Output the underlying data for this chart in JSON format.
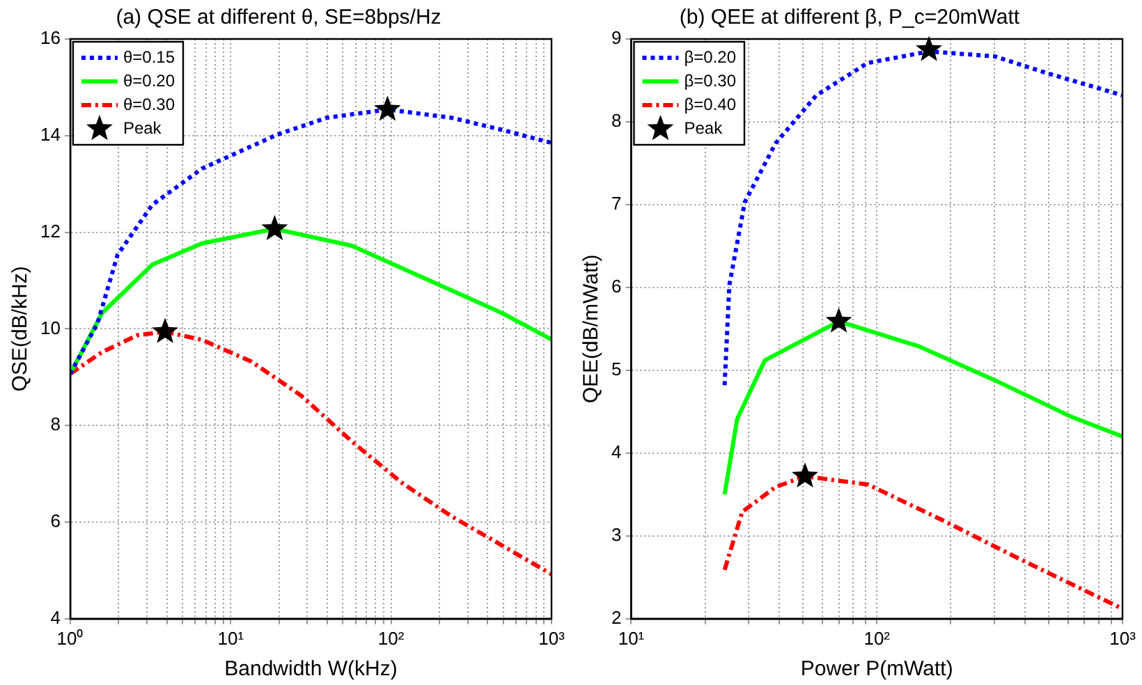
{
  "chart_data": [
    {
      "type": "line",
      "title": "(a) QSE at different θ, SE=8bps/Hz",
      "xlabel": "Bandwidth W(kHz)",
      "ylabel": "QSE(dB/kHz)",
      "log": "x",
      "grid": true,
      "legend": "top left",
      "xlim": [
        1,
        1000
      ],
      "xticks": [
        {
          "value": 1,
          "label": "10⁰"
        },
        {
          "value": 2,
          "label": null
        },
        {
          "value": 3,
          "label": null
        },
        {
          "value": 4,
          "label": null
        },
        {
          "value": 5,
          "label": null
        },
        {
          "value": 6,
          "label": null
        },
        {
          "value": 7,
          "label": null
        },
        {
          "value": 8,
          "label": null
        },
        {
          "value": 9,
          "label": null
        },
        {
          "value": 10,
          "label": "10¹"
        },
        {
          "value": 20,
          "label": null
        },
        {
          "value": 30,
          "label": null
        },
        {
          "value": 40,
          "label": null
        },
        {
          "value": 50,
          "label": null
        },
        {
          "value": 60,
          "label": null
        },
        {
          "value": 70,
          "label": null
        },
        {
          "value": 80,
          "label": null
        },
        {
          "value": 90,
          "label": null
        },
        {
          "value": 100,
          "label": "10²"
        },
        {
          "value": 200,
          "label": null
        },
        {
          "value": 300,
          "label": null
        },
        {
          "value": 400,
          "label": null
        },
        {
          "value": 500,
          "label": null
        },
        {
          "value": 600,
          "label": null
        },
        {
          "value": 700,
          "label": null
        },
        {
          "value": 800,
          "label": null
        },
        {
          "value": 900,
          "label": null
        },
        {
          "value": 1000,
          "label": "10³"
        }
      ],
      "ylim": [
        4,
        16
      ],
      "yticks": [
        4,
        6,
        8,
        10,
        12,
        14,
        16
      ],
      "series": [
        {
          "name": "θ=0.15",
          "color": "#0000ff",
          "line_style": "dotted",
          "marker": "none",
          "x": [
            1,
            1.48,
            1.97,
            3.25,
            6.65,
            19.5,
            39.8,
            95,
            238,
            490,
            1000
          ],
          "values": [
            9.07,
            10.12,
            11.53,
            12.57,
            13.32,
            14.02,
            14.37,
            14.54,
            14.37,
            14.12,
            13.85
          ]
        },
        {
          "name": "θ=0.20",
          "color": "#00ff00",
          "line_style": "solid",
          "marker": "none",
          "x": [
            1,
            1.58,
            3.25,
            6.65,
            18.8,
            56.9,
            166,
            490,
            1000
          ],
          "values": [
            9.07,
            10.33,
            11.33,
            11.77,
            12.07,
            11.72,
            11.03,
            10.33,
            9.78
          ]
        },
        {
          "name": "θ=0.30",
          "color": "#ff0000",
          "line_style": "dashed",
          "marker": "none",
          "x": [
            1,
            1.58,
            2.63,
            3.9,
            6.65,
            13.5,
            27.5,
            56.9,
            116,
            238,
            490,
            1000
          ],
          "values": [
            9.07,
            9.52,
            9.87,
            9.94,
            9.77,
            9.32,
            8.62,
            7.67,
            6.82,
            6.12,
            5.52,
            4.92
          ]
        },
        {
          "name": "Peak",
          "type": "scatter",
          "color": "#000000",
          "marker": "star",
          "x": [
            95,
            18.8,
            3.9
          ],
          "values": [
            14.54,
            12.07,
            9.94
          ]
        }
      ]
    },
    {
      "type": "line",
      "title": "(b) QEE at different β, P_c=20mWatt",
      "xlabel": "Power P(mWatt)",
      "ylabel": "QEE(dB/mWatt)",
      "log": "x",
      "grid": true,
      "legend": "top left",
      "xlim": [
        10,
        1000
      ],
      "xticks": [
        {
          "value": 10,
          "label": "10¹"
        },
        {
          "value": 20,
          "label": null
        },
        {
          "value": 30,
          "label": null
        },
        {
          "value": 40,
          "label": null
        },
        {
          "value": 50,
          "label": null
        },
        {
          "value": 60,
          "label": null
        },
        {
          "value": 70,
          "label": null
        },
        {
          "value": 80,
          "label": null
        },
        {
          "value": 90,
          "label": null
        },
        {
          "value": 100,
          "label": "10²"
        },
        {
          "value": 200,
          "label": null
        },
        {
          "value": 300,
          "label": null
        },
        {
          "value": 400,
          "label": null
        },
        {
          "value": 500,
          "label": null
        },
        {
          "value": 600,
          "label": null
        },
        {
          "value": 700,
          "label": null
        },
        {
          "value": 800,
          "label": null
        },
        {
          "value": 900,
          "label": null
        },
        {
          "value": 1000,
          "label": "10³"
        }
      ],
      "ylim": [
        2,
        9
      ],
      "yticks": [
        2,
        3,
        4,
        5,
        6,
        7,
        8,
        9
      ],
      "series": [
        {
          "name": "β=0.20",
          "color": "#0000ff",
          "line_style": "dotted",
          "marker": "none",
          "x": [
            24,
            25.1,
            29,
            38.7,
            56.7,
            91.7,
            163,
            302,
            490,
            1000
          ],
          "values": [
            4.82,
            6.03,
            7.03,
            7.74,
            8.32,
            8.71,
            8.85,
            8.79,
            8.59,
            8.32
          ]
        },
        {
          "name": "β=0.30",
          "color": "#00ff00",
          "line_style": "solid",
          "marker": "none",
          "x": [
            24,
            27,
            35,
            70,
            148,
            302,
            617,
            1000
          ],
          "values": [
            3.5,
            4.41,
            5.12,
            5.59,
            5.29,
            4.88,
            4.44,
            4.2
          ]
        },
        {
          "name": "β=0.40",
          "color": "#ff0000",
          "line_style": "dashed",
          "marker": "none",
          "x": [
            24,
            28.3,
            38.7,
            51,
            92,
            188,
            388,
            1000
          ],
          "values": [
            2.59,
            3.29,
            3.59,
            3.72,
            3.62,
            3.18,
            2.71,
            2.12
          ]
        },
        {
          "name": "Peak",
          "type": "scatter",
          "color": "#000000",
          "marker": "star",
          "x": [
            163,
            70,
            51
          ],
          "values": [
            8.87,
            5.59,
            3.72
          ]
        }
      ]
    }
  ]
}
